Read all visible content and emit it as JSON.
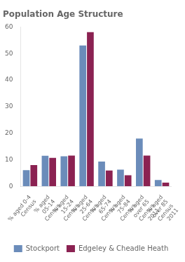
{
  "chart_data": {
    "type": "bar",
    "title": "Population Age Structure",
    "categories": [
      "% aged 0-4\nCensus",
      "% aged\n05-14\nCensus",
      "% aged\n15-24\nCensus",
      "% aged\n25-64\nCensus",
      "% aged\n65-74\nCensus",
      "% aged\n75-84\nCensus",
      "% aged\nover 65\nCensus\n2011",
      "% aged\nover 85\nCensus\n2011"
    ],
    "series": [
      {
        "name": "Stockport",
        "color": "#6b8cba",
        "values": [
          6.12,
          11.5,
          11.32,
          53.05,
          9.36,
          6.27,
          18.01,
          2.38
        ]
      },
      {
        "name": "Edgeley & Cheadle Heath",
        "color": "#8b2252",
        "values": [
          8.04,
          10.69,
          11.61,
          58.07,
          5.95,
          4.2,
          11.59,
          1.43
        ]
      }
    ],
    "ylim": [
      0,
      60
    ],
    "yticks": [
      0,
      10,
      20,
      30,
      40,
      50,
      60
    ],
    "grid": false,
    "legend": "bottom"
  }
}
